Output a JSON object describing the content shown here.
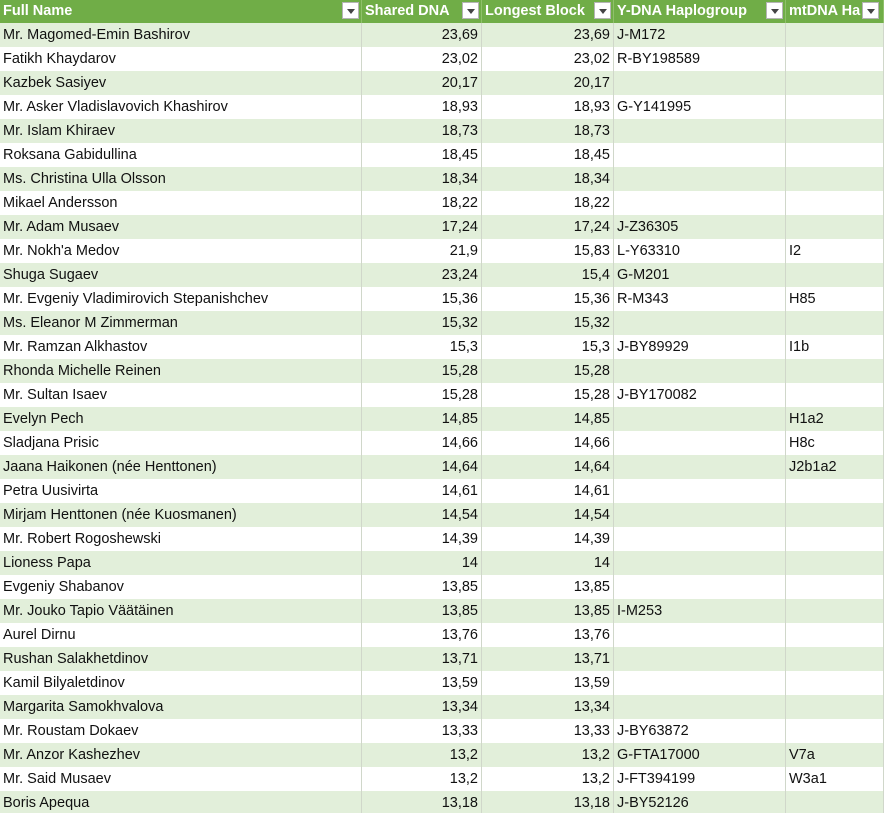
{
  "table": {
    "columns": [
      "Full Name",
      "Shared DNA",
      "Longest Block",
      "Y-DNA Haplogroup",
      "mtDNA Ha"
    ],
    "rows": [
      [
        "Mr. Magomed-Emin Bashirov",
        "23,69",
        "23,69",
        "J-M172",
        null
      ],
      [
        "Fatikh Khaydarov",
        "23,02",
        "23,02",
        "R-BY198589",
        null
      ],
      [
        "Kazbek Sasiyev",
        "20,17",
        "20,17",
        null,
        null
      ],
      [
        "Mr. Asker Vladislavovich Khashirov",
        "18,93",
        "18,93",
        "G-Y141995",
        null
      ],
      [
        "Mr. Islam Khiraev",
        "18,73",
        "18,73",
        null,
        null
      ],
      [
        "Roksana Gabidullina",
        "18,45",
        "18,45",
        null,
        null
      ],
      [
        "Ms. Christina Ulla Olsson",
        "18,34",
        "18,34",
        null,
        null
      ],
      [
        "Mikael Andersson",
        "18,22",
        "18,22",
        null,
        null
      ],
      [
        "Mr. Adam Musaev",
        "17,24",
        "17,24",
        "J-Z36305",
        null
      ],
      [
        "Mr. Nokh'a Medov",
        "21,9",
        "15,83",
        "L-Y63310",
        "I2"
      ],
      [
        "Shuga Sugaev",
        "23,24",
        "15,4",
        "G-M201",
        null
      ],
      [
        "Mr. Evgeniy Vladimirovich Stepanishchev",
        "15,36",
        "15,36",
        "R-M343",
        "H85"
      ],
      [
        "Ms. Eleanor M Zimmerman",
        "15,32",
        "15,32",
        null,
        null
      ],
      [
        "Mr. Ramzan Alkhastov",
        "15,3",
        "15,3",
        "J-BY89929",
        "I1b"
      ],
      [
        "Rhonda Michelle Reinen",
        "15,28",
        "15,28",
        null,
        null
      ],
      [
        "Mr. Sultan Isaev",
        "15,28",
        "15,28",
        "J-BY170082",
        null
      ],
      [
        "Evelyn Pech",
        "14,85",
        "14,85",
        null,
        "H1a2"
      ],
      [
        "Sladjana Prisic",
        "14,66",
        "14,66",
        null,
        "H8c"
      ],
      [
        "Jaana Haikonen (née Henttonen)",
        "14,64",
        "14,64",
        null,
        "J2b1a2"
      ],
      [
        "Petra Uusivirta",
        "14,61",
        "14,61",
        null,
        null
      ],
      [
        "Mirjam Henttonen (née Kuosmanen)",
        "14,54",
        "14,54",
        null,
        null
      ],
      [
        "Mr. Robert Rogoshewski",
        "14,39",
        "14,39",
        null,
        null
      ],
      [
        "Lioness Papa",
        "14",
        "14",
        null,
        null
      ],
      [
        "Evgeniy Shabanov",
        "13,85",
        "13,85",
        null,
        null
      ],
      [
        "Mr. Jouko Tapio Väätäinen",
        "13,85",
        "13,85",
        "I-M253",
        null
      ],
      [
        "Aurel Dirnu",
        "13,76",
        "13,76",
        null,
        null
      ],
      [
        "Rushan Salakhetdinov",
        "13,71",
        "13,71",
        null,
        null
      ],
      [
        "Kamil Bilyaletdinov",
        "13,59",
        "13,59",
        null,
        null
      ],
      [
        "Margarita Samokhvalova",
        "13,34",
        "13,34",
        null,
        null
      ],
      [
        "Mr. Roustam Dokaev",
        "13,33",
        "13,33",
        "J-BY63872",
        null
      ],
      [
        "Mr. Anzor Kashezhev",
        "13,2",
        "13,2",
        "G-FTA17000",
        "V7a"
      ],
      [
        "Mr. Said Musaev",
        "13,2",
        "13,2",
        "J-FT394199",
        "W3a1"
      ],
      [
        "Boris Apequa",
        "13,18",
        "13,18",
        "J-BY52126",
        null
      ]
    ]
  }
}
